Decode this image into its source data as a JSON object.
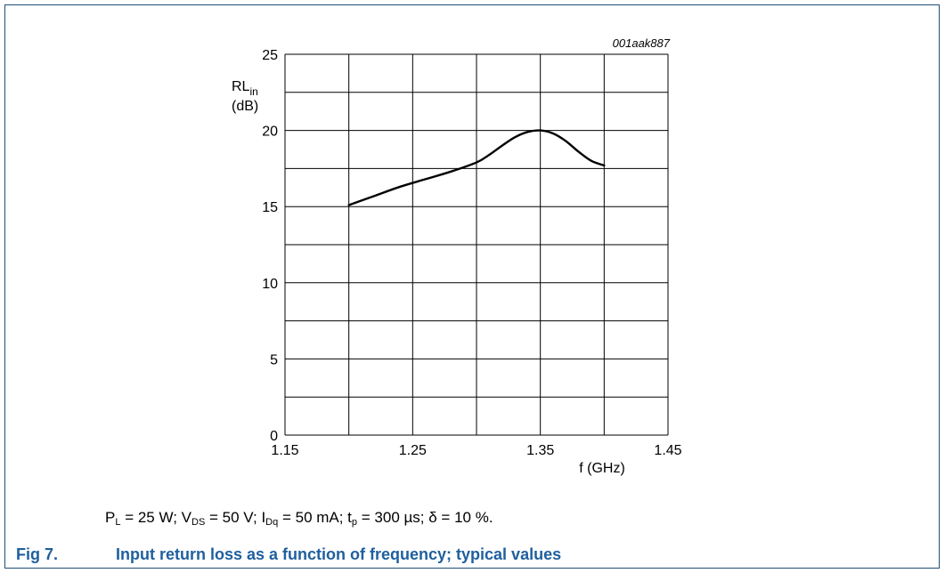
{
  "figure": {
    "code": "001aak887",
    "caption_number": "Fig 7.",
    "caption_text": "Input return loss as a function of frequency; typical values",
    "conditions": [
      {
        "t": "P"
      },
      {
        "t": "L",
        "sub": true
      },
      {
        "t": " = 25 W; V"
      },
      {
        "t": "DS",
        "sub": true
      },
      {
        "t": " = 50 V; I"
      },
      {
        "t": "Dq",
        "sub": true
      },
      {
        "t": " = 50 mA; t"
      },
      {
        "t": "p",
        "sub": true
      },
      {
        "t": " = 300 µs; δ = 10 %."
      }
    ],
    "colors": {
      "frame": "#1f4e79",
      "caption": "#1f5f9e",
      "line": "#000000",
      "grid": "#000000"
    }
  },
  "chart_data": {
    "type": "line",
    "ylabel_main": "RL",
    "ylabel_sub": "in",
    "ylabel_unit": "(dB)",
    "xlabel": "f (GHz)",
    "xlim": [
      1.15,
      1.45
    ],
    "ylim": [
      0,
      25
    ],
    "x_ticks": [
      1.15,
      1.25,
      1.35,
      1.45
    ],
    "x_tick_labels": [
      "1.15",
      "1.25",
      "1.35",
      "1.45"
    ],
    "y_ticks": [
      0,
      5,
      10,
      15,
      20,
      25
    ],
    "y_tick_labels": [
      "0",
      "5",
      "10",
      "15",
      "20",
      "25"
    ],
    "x_grid": [
      1.15,
      1.2,
      1.25,
      1.3,
      1.35,
      1.4,
      1.45
    ],
    "y_grid": [
      0,
      2.5,
      5,
      7.5,
      10,
      12.5,
      15,
      17.5,
      20,
      22.5,
      25
    ],
    "grid": true,
    "series": [
      {
        "x": [
          1.2,
          1.22,
          1.24,
          1.26,
          1.28,
          1.3,
          1.31,
          1.32,
          1.33,
          1.34,
          1.35,
          1.36,
          1.37,
          1.38,
          1.39,
          1.4
        ],
        "y": [
          15.1,
          15.7,
          16.3,
          16.8,
          17.3,
          17.9,
          18.4,
          19.0,
          19.55,
          19.9,
          20.0,
          19.8,
          19.3,
          18.6,
          18.0,
          17.7
        ]
      }
    ]
  }
}
